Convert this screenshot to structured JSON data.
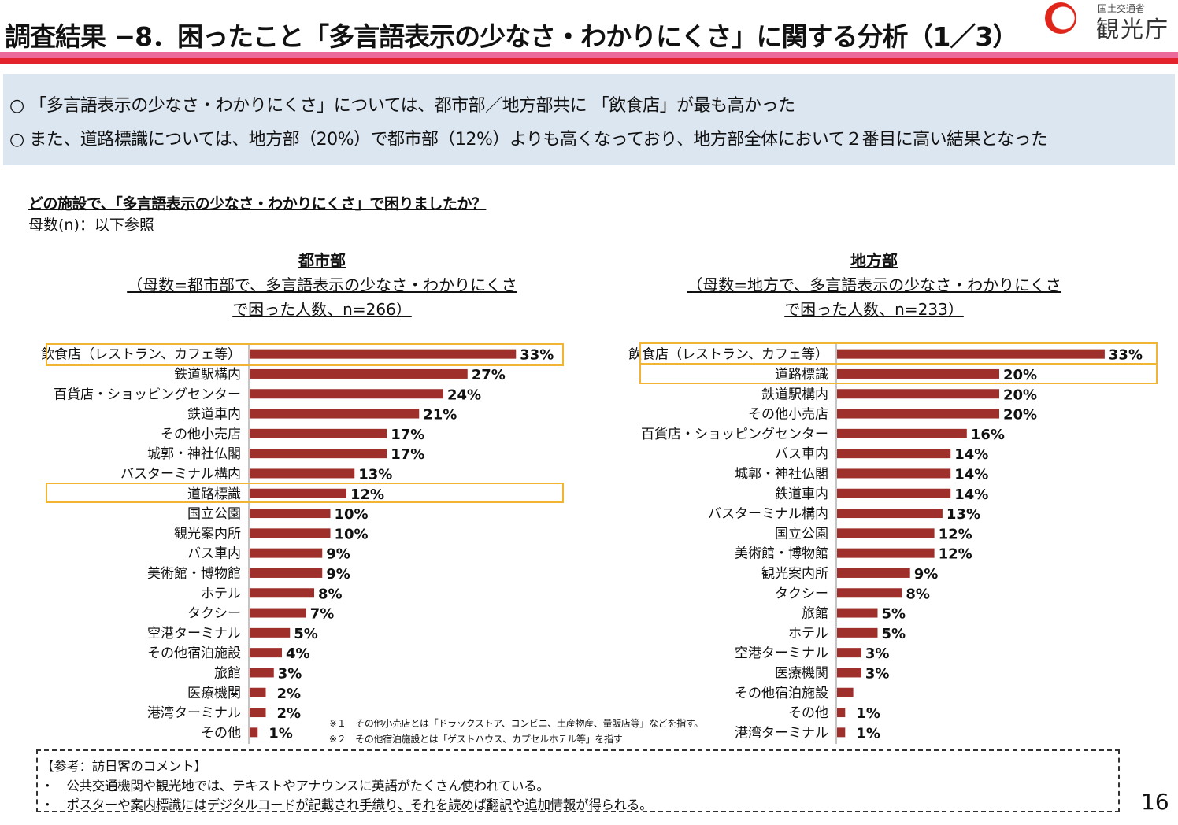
{
  "header": {
    "title": "調査結果 −8．困ったこと「多言語表示の少なさ・わかりにくさ」に関する分析（1／3）",
    "logo_small": "国土交通省",
    "logo_text": "観光庁",
    "logo_color": "#e0261b"
  },
  "summary": {
    "line1": "○ 「多言語表示の少なさ・わかりにくさ」については、都市部／地方部共に 「飲食店」が最も高かった",
    "line2": "○ また、道路標識については、地方部（20%）で都市部（12%）よりも高くなっており、地方部全体において２番目に高い結果となった"
  },
  "question": "どの施設で、「多言語表示の少なさ・わかりにくさ」で困りましたか？",
  "base_note": "母数(n)：以下参照",
  "chart_data": [
    {
      "type": "bar",
      "orientation": "horizontal",
      "title": "都市部",
      "subtitle_line1": "（母数=都市部で、多言語表示の少なさ・わかりにくさ",
      "subtitle_line2": "で困った人数、n=266）",
      "categories": [
        "飲食店（レストラン、カフェ等）",
        "鉄道駅構内",
        "百貨店・ショッピングセンター",
        "鉄道車内",
        "その他小売店",
        "城郭・神社仏閣",
        "バスターミナル構内",
        "道路標識",
        "国立公園",
        "観光案内所",
        "バス車内",
        "美術館・博物館",
        "ホテル",
        "タクシー",
        "空港ターミナル",
        "その他宿泊施設",
        "旅館",
        "医療機関",
        "港湾ターミナル",
        "その他"
      ],
      "values": [
        33,
        27,
        24,
        21,
        17,
        17,
        13,
        12,
        10,
        10,
        9,
        9,
        8,
        7,
        5,
        4,
        3,
        2,
        2,
        1
      ],
      "value_labels": [
        "33%",
        "27%",
        "24%",
        "21%",
        "17%",
        "17%",
        "13%",
        "12%",
        "10%",
        "10%",
        "9%",
        "9%",
        "8%",
        "7%",
        "5%",
        "4%",
        "3%",
        "2%",
        "2%",
        "1%"
      ],
      "highlighted": [
        "飲食店（レストラン、カフェ等）",
        "道路標識"
      ],
      "xlim": [
        0,
        33
      ],
      "bar_color": "#9e2f2b",
      "highlight_color": "#f2b533"
    },
    {
      "type": "bar",
      "orientation": "horizontal",
      "title": "地方部",
      "subtitle_line1": "（母数=地方で、多言語表示の少なさ・わかりにくさ",
      "subtitle_line2": "で困った人数、n=233）",
      "categories": [
        "飲食店（レストラン、カフェ等）",
        "道路標識",
        "鉄道駅構内",
        "その他小売店",
        "百貨店・ショッピングセンター",
        "バス車内",
        "城郭・神社仏閣",
        "鉄道車内",
        "バスターミナル構内",
        "国立公園",
        "美術館・博物館",
        "観光案内所",
        "タクシー",
        "旅館",
        "ホテル",
        "空港ターミナル",
        "医療機関",
        "その他宿泊施設",
        "その他",
        "港湾ターミナル"
      ],
      "values": [
        33,
        20,
        20,
        20,
        16,
        14,
        14,
        14,
        13,
        12,
        12,
        9,
        8,
        5,
        5,
        3,
        3,
        2,
        1,
        1
      ],
      "value_labels": [
        "33%",
        "20%",
        "20%",
        "20%",
        "16%",
        "14%",
        "14%",
        "14%",
        "13%",
        "12%",
        "12%",
        "9%",
        "8%",
        "5%",
        "5%",
        "3%",
        "3%",
        "",
        "1%",
        "1%"
      ],
      "highlighted": [
        "飲食店（レストラン、カフェ等）",
        "道路標識"
      ],
      "xlim": [
        0,
        33
      ],
      "bar_color": "#9e2f2b",
      "highlight_color": "#f2b533"
    }
  ],
  "footnotes": {
    "note1": "※１　その他小売店とは「ドラックストア、コンビニ、土産物産、量販店等」などを指す。",
    "note2": "※２　その他宿泊施設とは「ゲストハウス、カプセルホテル等」を指す"
  },
  "comments": {
    "heading": "【参考：訪日客のコメント】",
    "items": [
      "・　公共交通機関や観光地では、テキストやアナウンスに英語がたくさん使われている。",
      "・　ポスターや案内標識にはデジタルコードが記載され手織り、それを読めば翻訳や追加情報が得られる。"
    ]
  },
  "page_number": "16"
}
